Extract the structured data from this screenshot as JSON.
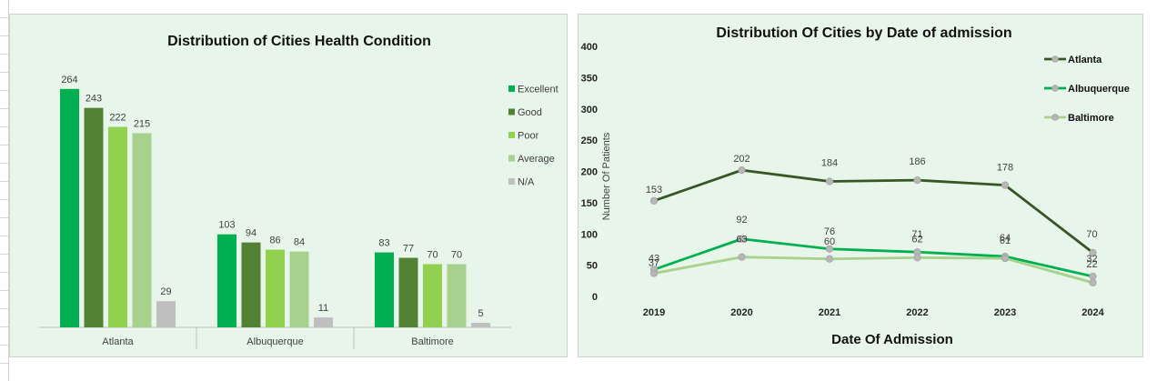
{
  "chart_data": [
    {
      "type": "bar",
      "title": "Distribution of Cities Health Condition",
      "categories": [
        "Atlanta",
        "Albuquerque",
        "Baltimore"
      ],
      "series": [
        {
          "name": "Excellent",
          "values": [
            264,
            103,
            83
          ],
          "color": "#00b050"
        },
        {
          "name": "Good",
          "values": [
            243,
            94,
            77
          ],
          "color": "#548235"
        },
        {
          "name": "Poor",
          "values": [
            222,
            86,
            70
          ],
          "color": "#92d050"
        },
        {
          "name": "Average",
          "values": [
            215,
            84,
            70
          ],
          "color": "#a9d18e"
        },
        {
          "name": "N/A",
          "values": [
            29,
            11,
            5
          ],
          "color": "#bfbfbf"
        }
      ],
      "ylim": [
        0,
        290
      ],
      "legend": "right",
      "grid": false
    },
    {
      "type": "line",
      "title": "Distribution Of Cities by Date of admission",
      "xlabel": "Date Of Admission",
      "ylabel": "Number Of Patients",
      "x": [
        "2019",
        "2020",
        "2021",
        "2022",
        "2023",
        "2024"
      ],
      "yticks": [
        "0",
        "50",
        "100",
        "150",
        "200",
        "250",
        "300",
        "350",
        "400"
      ],
      "ylim": [
        0,
        400
      ],
      "series": [
        {
          "name": "Atlanta",
          "values": [
            153,
            202,
            184,
            186,
            178,
            70
          ],
          "color": "#375623"
        },
        {
          "name": "Albuquerque",
          "values": [
            43,
            92,
            76,
            71,
            64,
            32
          ],
          "color": "#00b050"
        },
        {
          "name": "Baltimore",
          "values": [
            37,
            63,
            60,
            62,
            61,
            22
          ],
          "color": "#a9d18e"
        }
      ],
      "legend": "top-right",
      "grid": false
    }
  ]
}
